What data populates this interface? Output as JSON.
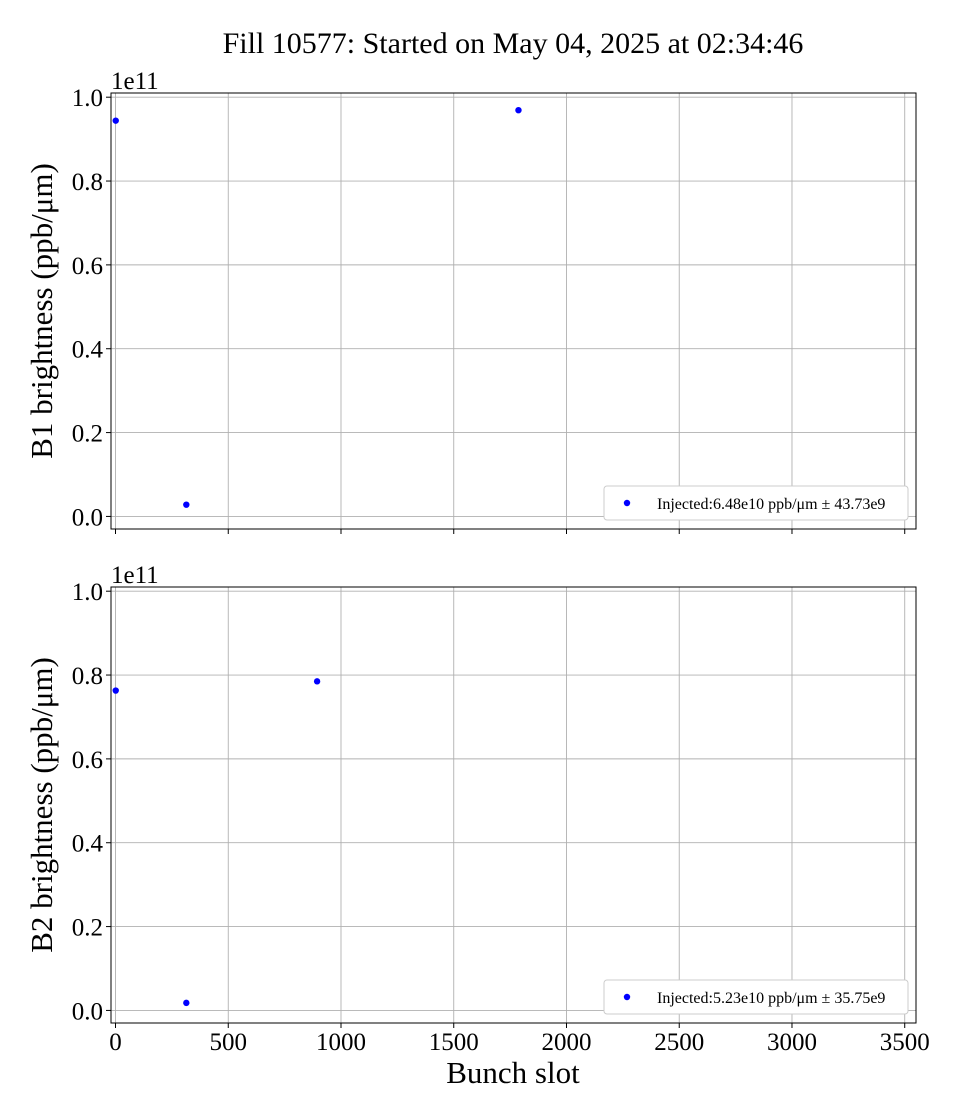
{
  "figure": {
    "title": "Fill 10577: Started on May 04, 2025 at 02:34:46"
  },
  "chart_data": [
    {
      "type": "scatter",
      "panel": "top",
      "ylabel": "B1 brightness (ppb/μm)",
      "xlabel": "",
      "offset_text": "1e11",
      "xlim": [
        -20,
        3550
      ],
      "ylim": [
        -0.03,
        1.01
      ],
      "y_scale_factor": 100000000000.0,
      "xticks": [
        0,
        500,
        1000,
        1500,
        2000,
        2500,
        3000,
        3500
      ],
      "xtick_labels_visible": false,
      "yticks": [
        0.0,
        0.2,
        0.4,
        0.6,
        0.8,
        1.0
      ],
      "ytick_labels": [
        "0.0",
        "0.2",
        "0.4",
        "0.6",
        "0.8",
        "1.0"
      ],
      "grid": true,
      "legend_position": "lower-right",
      "series": [
        {
          "name": "Injected:6.48e10 ppb/μm ± 43.73e9",
          "color": "#0000ff",
          "marker": "circle",
          "x": [
            1,
            314,
            1787
          ],
          "y": [
            0.944,
            0.028,
            0.969
          ]
        }
      ]
    },
    {
      "type": "scatter",
      "panel": "bottom",
      "ylabel": "B2 brightness (ppb/μm)",
      "xlabel": "Bunch slot",
      "offset_text": "1e11",
      "xlim": [
        -20,
        3550
      ],
      "ylim": [
        -0.03,
        1.01
      ],
      "y_scale_factor": 100000000000.0,
      "xticks": [
        0,
        500,
        1000,
        1500,
        2000,
        2500,
        3000,
        3500
      ],
      "xtick_labels": [
        "0",
        "500",
        "1000",
        "1500",
        "2000",
        "2500",
        "3000",
        "3500"
      ],
      "xtick_labels_visible": true,
      "yticks": [
        0.0,
        0.2,
        0.4,
        0.6,
        0.8,
        1.0
      ],
      "ytick_labels": [
        "0.0",
        "0.2",
        "0.4",
        "0.6",
        "0.8",
        "1.0"
      ],
      "grid": true,
      "legend_position": "lower-right",
      "series": [
        {
          "name": "Injected:5.23e10 ppb/μm ± 35.75e9",
          "color": "#0000ff",
          "marker": "circle",
          "x": [
            1,
            314,
            894
          ],
          "y": [
            0.763,
            0.018,
            0.785
          ]
        }
      ]
    }
  ]
}
